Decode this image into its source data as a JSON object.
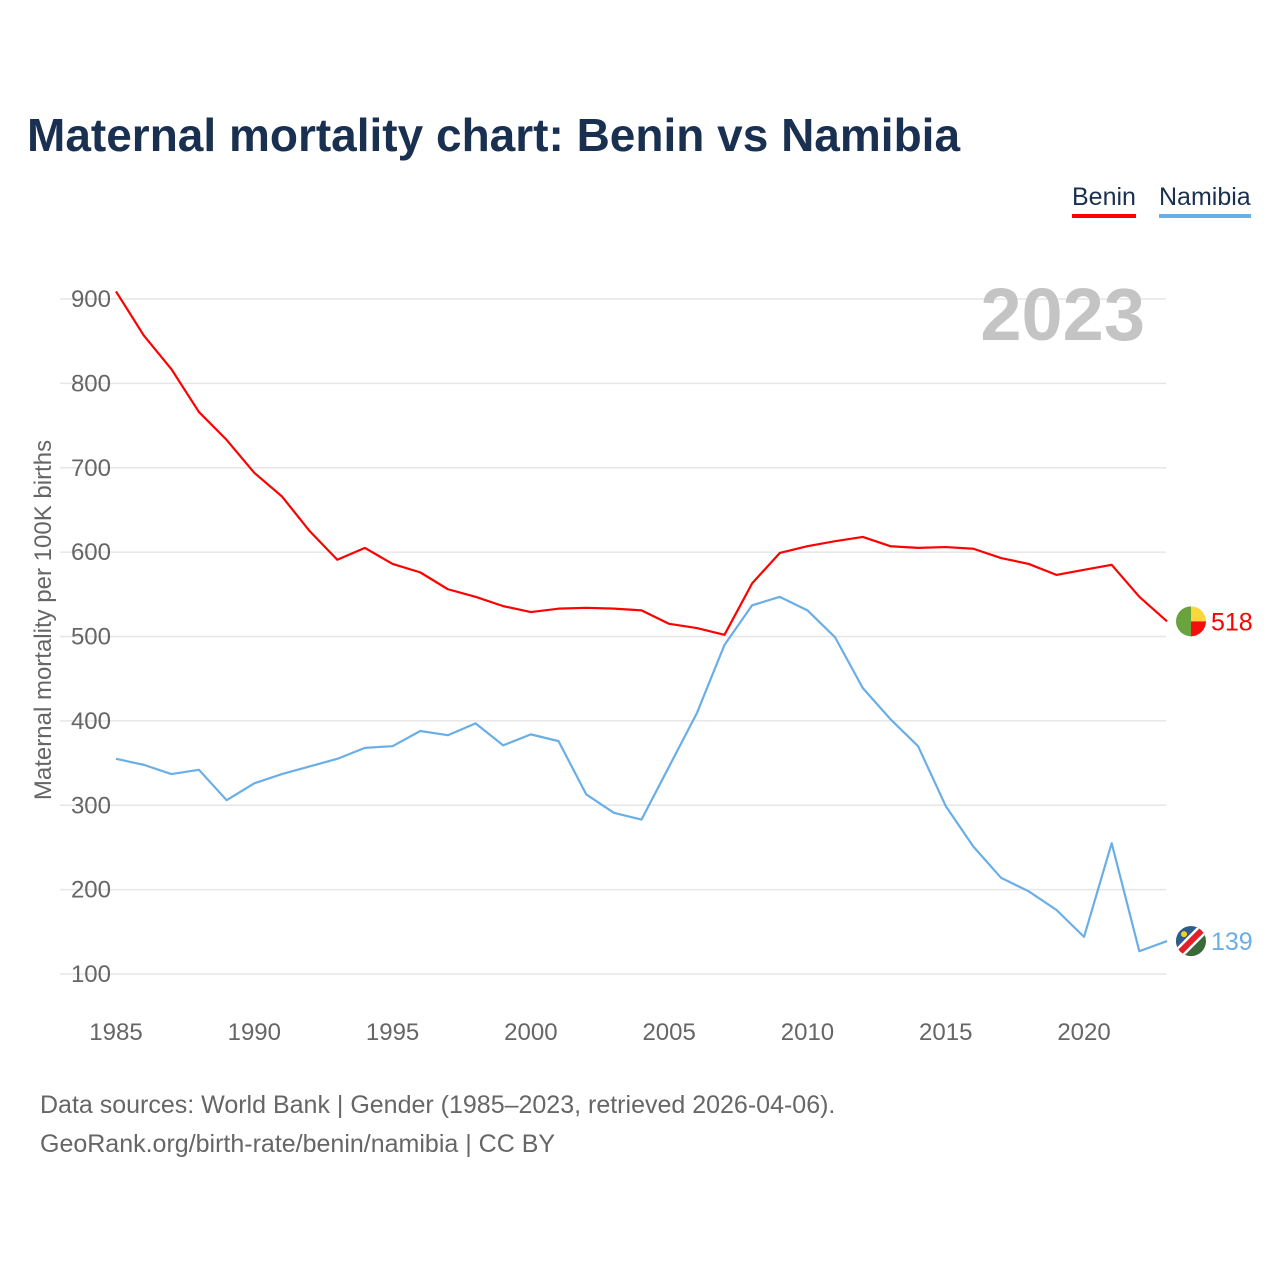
{
  "chart_data": {
    "type": "line",
    "title": "Maternal mortality chart: Benin vs Namibia",
    "ylabel": "Maternal mortality per 100K births",
    "xlabel": "",
    "year_label": "2023",
    "ylim": [
      100,
      900
    ],
    "xlim": [
      1985,
      2023
    ],
    "yticks": [
      100,
      200,
      300,
      400,
      500,
      600,
      700,
      800,
      900
    ],
    "xticks": [
      1985,
      1990,
      1995,
      2000,
      2005,
      2010,
      2015,
      2020
    ],
    "grid": true,
    "legend_position": "top-right",
    "x": [
      1985,
      1986,
      1987,
      1988,
      1989,
      1990,
      1991,
      1992,
      1993,
      1994,
      1995,
      1996,
      1997,
      1998,
      1999,
      2000,
      2001,
      2002,
      2003,
      2004,
      2005,
      2006,
      2007,
      2008,
      2009,
      2010,
      2011,
      2012,
      2013,
      2014,
      2015,
      2016,
      2017,
      2018,
      2019,
      2020,
      2021,
      2022,
      2023
    ],
    "series": [
      {
        "name": "Benin",
        "color": "#ff0000",
        "end_label": "518",
        "values": [
          909,
          857,
          817,
          766,
          733,
          694,
          666,
          625,
          591,
          605,
          586,
          576,
          556,
          547,
          536,
          529,
          533,
          534,
          533,
          531,
          515,
          510,
          502,
          563,
          599,
          607,
          613,
          618,
          607,
          605,
          606,
          604,
          593,
          586,
          573,
          579,
          585,
          547,
          518
        ]
      },
      {
        "name": "Namibia",
        "color": "#6aaee8",
        "end_label": "139",
        "values": [
          355,
          348,
          337,
          342,
          306,
          326,
          337,
          346,
          355,
          368,
          370,
          388,
          383,
          397,
          371,
          384,
          376,
          313,
          291,
          283,
          346,
          409,
          490,
          537,
          547,
          531,
          499,
          439,
          402,
          370,
          299,
          251,
          214,
          198,
          176,
          144,
          255,
          127,
          139
        ]
      }
    ]
  },
  "footer": {
    "line1": "Data sources: World Bank | Gender (1985–2023, retrieved 2026-04-06).",
    "line2": "GeoRank.org/birth-rate/benin/namibia | CC BY"
  }
}
